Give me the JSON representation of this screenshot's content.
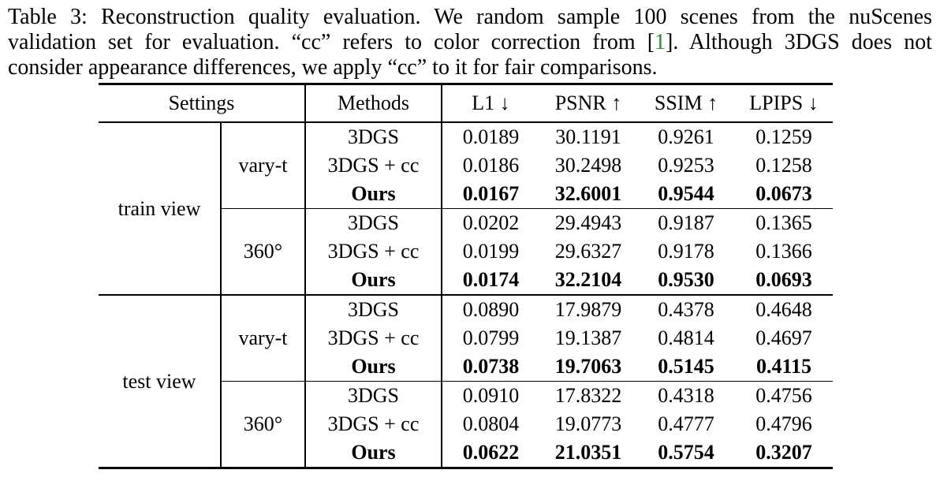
{
  "caption": {
    "line1": "Table 3: Reconstruction quality evaluation.  We random sample 100 scenes from the nuScenes",
    "line2_pre": "validation set for evaluation.  “cc” refers to color correction from [",
    "line2_cite": "1",
    "line2_post": "].  Although 3DGS does not",
    "line3": "consider appearance differences, we apply “cc” to it for fair comparisons."
  },
  "colors": {
    "citation_green": "#2e8b2e",
    "text": "#000000",
    "background": "#ffffff"
  },
  "table": {
    "header": {
      "settings": "Settings",
      "methods": "Methods",
      "metrics": [
        "L1 ↓",
        "PSNR ↑",
        "SSIM ↑",
        "LPIPS ↓"
      ]
    },
    "sections": [
      {
        "view": "train view",
        "groups": [
          {
            "setting": "vary-t",
            "rows": [
              {
                "method": "3DGS",
                "bold": false,
                "values": [
                  "0.0189",
                  "30.1191",
                  "0.9261",
                  "0.1259"
                ]
              },
              {
                "method": "3DGS + cc",
                "bold": false,
                "values": [
                  "0.0186",
                  "30.2498",
                  "0.9253",
                  "0.1258"
                ]
              },
              {
                "method": "Ours",
                "bold": true,
                "values": [
                  "0.0167",
                  "32.6001",
                  "0.9544",
                  "0.0673"
                ]
              }
            ]
          },
          {
            "setting": "360°",
            "rows": [
              {
                "method": "3DGS",
                "bold": false,
                "values": [
                  "0.0202",
                  "29.4943",
                  "0.9187",
                  "0.1365"
                ]
              },
              {
                "method": "3DGS + cc",
                "bold": false,
                "values": [
                  "0.0199",
                  "29.6327",
                  "0.9178",
                  "0.1366"
                ]
              },
              {
                "method": "Ours",
                "bold": true,
                "values": [
                  "0.0174",
                  "32.2104",
                  "0.9530",
                  "0.0693"
                ]
              }
            ]
          }
        ]
      },
      {
        "view": "test view",
        "groups": [
          {
            "setting": "vary-t",
            "rows": [
              {
                "method": "3DGS",
                "bold": false,
                "values": [
                  "0.0890",
                  "17.9879",
                  "0.4378",
                  "0.4648"
                ]
              },
              {
                "method": "3DGS + cc",
                "bold": false,
                "values": [
                  "0.0799",
                  "19.1387",
                  "0.4814",
                  "0.4697"
                ]
              },
              {
                "method": "Ours",
                "bold": true,
                "values": [
                  "0.0738",
                  "19.7063",
                  "0.5145",
                  "0.4115"
                ]
              }
            ]
          },
          {
            "setting": "360°",
            "rows": [
              {
                "method": "3DGS",
                "bold": false,
                "values": [
                  "0.0910",
                  "17.8322",
                  "0.4318",
                  "0.4756"
                ]
              },
              {
                "method": "3DGS + cc",
                "bold": false,
                "values": [
                  "0.0804",
                  "19.0773",
                  "0.4777",
                  "0.4796"
                ]
              },
              {
                "method": "Ours",
                "bold": true,
                "values": [
                  "0.0622",
                  "21.0351",
                  "0.5754",
                  "0.3207"
                ]
              }
            ]
          }
        ]
      }
    ]
  }
}
